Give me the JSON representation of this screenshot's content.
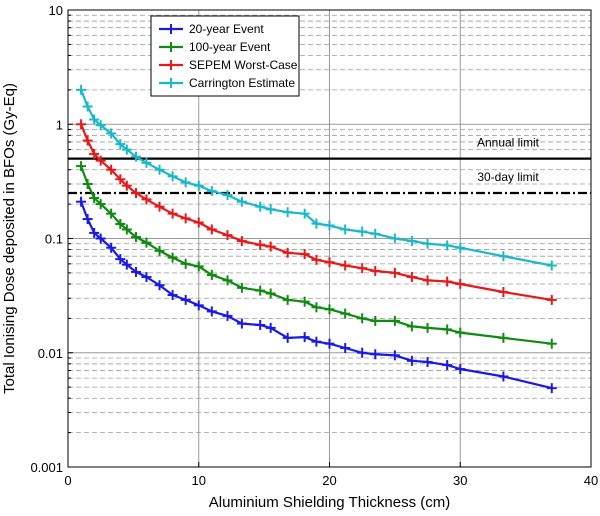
{
  "chart_data": {
    "type": "line",
    "title": "",
    "xlabel": "Aluminium Shielding Thickness (cm)",
    "ylabel": "Total Ionising Dose deposited in BFOs (Gy-Eq)",
    "xlim": [
      0,
      40
    ],
    "ylim": [
      0.001,
      10
    ],
    "yscale": "log",
    "legend_position": "top-left",
    "x_ticks": [
      {
        "value": 0,
        "label": "0"
      },
      {
        "value": 10,
        "label": "10"
      },
      {
        "value": 20,
        "label": "20"
      },
      {
        "value": 30,
        "label": "30"
      },
      {
        "value": 40,
        "label": "40"
      }
    ],
    "y_ticks": [
      {
        "value": 0.001,
        "label": "0.001"
      },
      {
        "value": 0.01,
        "label": "0.01"
      },
      {
        "value": 0.1,
        "label": "0.1"
      },
      {
        "value": 1,
        "label": "1"
      },
      {
        "value": 10,
        "label": "10"
      }
    ],
    "x": [
      1.0,
      1.5,
      2.0,
      2.5,
      3.3,
      4.0,
      4.5,
      5.2,
      6.0,
      7.0,
      8.0,
      9.0,
      10.0,
      11.0,
      12.2,
      13.3,
      14.7,
      15.5,
      16.8,
      18.1,
      19.0,
      20.0,
      21.2,
      22.5,
      23.5,
      25.0,
      26.3,
      27.5,
      29.0,
      30.0,
      33.3,
      37.0
    ],
    "series": [
      {
        "name": "20-year Event",
        "color": "#1a1ae6",
        "values": [
          0.21,
          0.148,
          0.112,
          0.1,
          0.083,
          0.066,
          0.059,
          0.051,
          0.046,
          0.039,
          0.032,
          0.029,
          0.026,
          0.023,
          0.021,
          0.018,
          0.0175,
          0.0165,
          0.0135,
          0.0137,
          0.0125,
          0.012,
          0.011,
          0.01,
          0.0097,
          0.0095,
          0.0085,
          0.0083,
          0.0078,
          0.0072,
          0.0062,
          0.0049
        ]
      },
      {
        "name": "100-year Event",
        "color": "#108a10",
        "values": [
          0.43,
          0.3,
          0.226,
          0.2,
          0.165,
          0.134,
          0.12,
          0.103,
          0.092,
          0.078,
          0.068,
          0.06,
          0.057,
          0.048,
          0.043,
          0.037,
          0.035,
          0.033,
          0.029,
          0.028,
          0.025,
          0.024,
          0.022,
          0.02,
          0.019,
          0.019,
          0.017,
          0.0165,
          0.016,
          0.015,
          0.0135,
          0.012
        ]
      },
      {
        "name": "SEPEM Worst-Case",
        "color": "#e61a1a",
        "values": [
          1.0,
          0.72,
          0.55,
          0.48,
          0.4,
          0.33,
          0.29,
          0.25,
          0.22,
          0.19,
          0.165,
          0.15,
          0.138,
          0.12,
          0.107,
          0.095,
          0.088,
          0.085,
          0.075,
          0.073,
          0.065,
          0.062,
          0.058,
          0.055,
          0.052,
          0.05,
          0.046,
          0.043,
          0.042,
          0.04,
          0.034,
          0.029
        ]
      },
      {
        "name": "Carrington Estimate",
        "color": "#1ab8c8",
        "values": [
          2.0,
          1.43,
          1.1,
          0.98,
          0.83,
          0.67,
          0.6,
          0.52,
          0.46,
          0.4,
          0.35,
          0.31,
          0.29,
          0.26,
          0.24,
          0.21,
          0.19,
          0.18,
          0.17,
          0.165,
          0.135,
          0.13,
          0.12,
          0.115,
          0.11,
          0.1,
          0.095,
          0.09,
          0.087,
          0.083,
          0.07,
          0.058
        ]
      }
    ],
    "reference_lines": [
      {
        "name": "Annual limit",
        "value": 0.5,
        "style": "solid"
      },
      {
        "name": "30-day limit",
        "value": 0.25,
        "style": "dash-dot"
      }
    ]
  }
}
